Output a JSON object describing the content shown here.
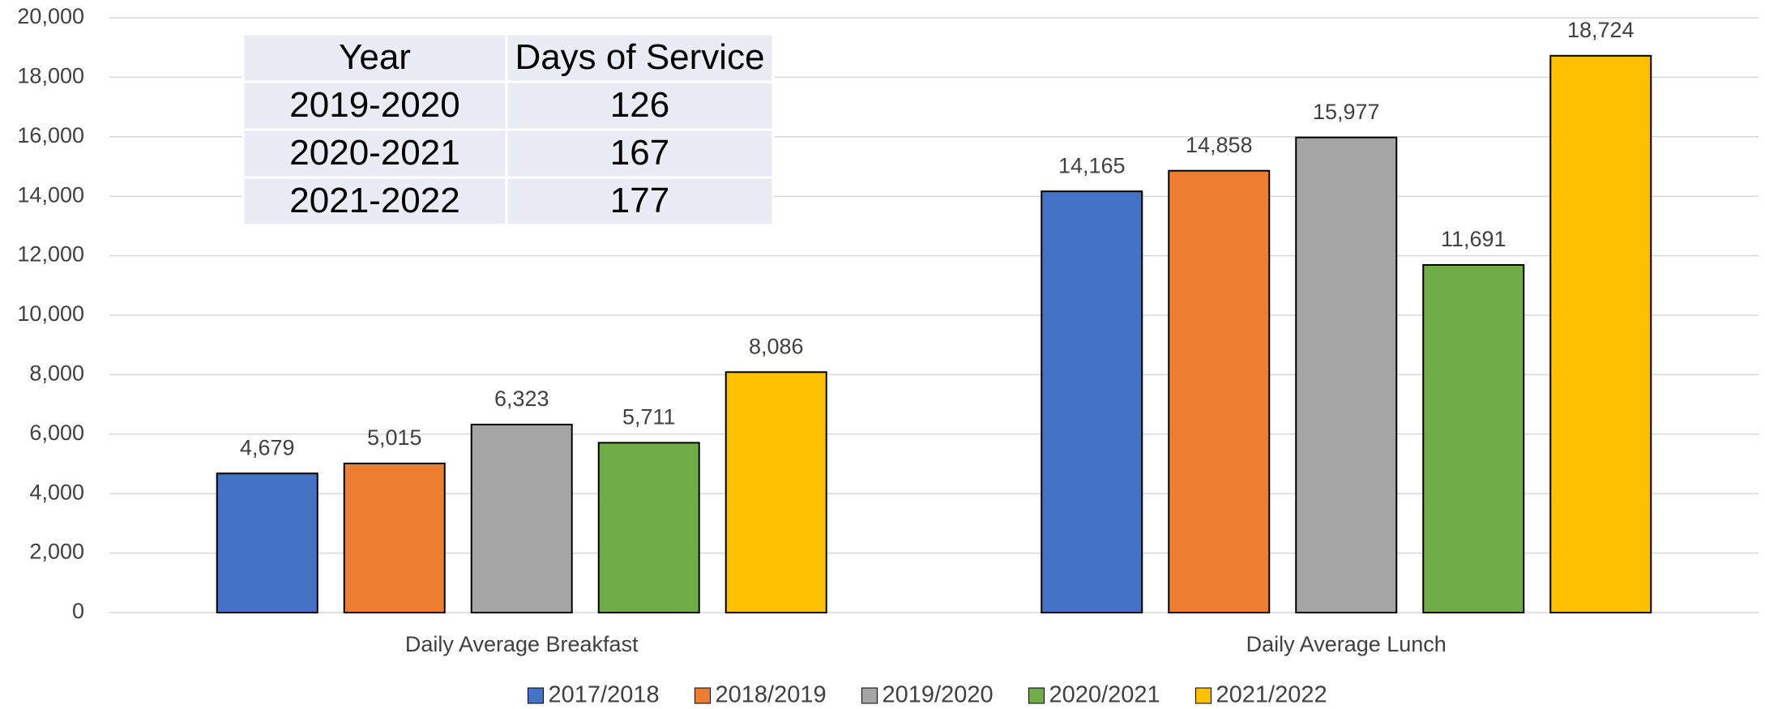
{
  "chart_data": {
    "type": "bar",
    "categories": [
      "Daily Average Breakfast",
      "Daily Average Lunch"
    ],
    "series": [
      {
        "name": "2017/2018",
        "color": "#4472c4",
        "values": [
          4679,
          14165
        ],
        "value_labels": [
          "4,679",
          "14,165"
        ]
      },
      {
        "name": "2018/2019",
        "color": "#ed7d31",
        "values": [
          5015,
          14858
        ],
        "value_labels": [
          "5,015",
          "14,858"
        ]
      },
      {
        "name": "2019/2020",
        "color": "#a5a5a5",
        "values": [
          6323,
          15977
        ],
        "value_labels": [
          "6,323",
          "15,977"
        ]
      },
      {
        "name": "2020/2021",
        "color": "#70ad47",
        "values": [
          5711,
          11691
        ],
        "value_labels": [
          "5,711",
          "11,691"
        ]
      },
      {
        "name": "2021/2022",
        "color": "#ffc000",
        "values": [
          8086,
          18724
        ],
        "value_labels": [
          "8,086",
          "18,724"
        ]
      }
    ],
    "ylim": [
      0,
      20000
    ],
    "yticks": [
      0,
      {
        "value": 2000,
        "label": "2,000"
      },
      {
        "value": 4000,
        "label": "4,000"
      },
      {
        "value": 6000,
        "label": "6,000"
      },
      {
        "value": 8000,
        "label": "8,000"
      },
      {
        "value": 10000,
        "label": "10,000"
      },
      {
        "value": 12000,
        "label": "12,000"
      },
      {
        "value": 14000,
        "label": "14,000"
      },
      {
        "value": 16000,
        "label": "16,000"
      },
      {
        "value": 18000,
        "label": "18,000"
      },
      {
        "value": 20000,
        "label": "20,000"
      }
    ],
    "grid": true,
    "legend": "bottom",
    "table": {
      "header": [
        "Year",
        "Days of Service"
      ],
      "rows": [
        [
          "2019-2020",
          "126"
        ],
        [
          "2020-2021",
          "167"
        ],
        [
          "2021-2022",
          "177"
        ]
      ]
    }
  }
}
